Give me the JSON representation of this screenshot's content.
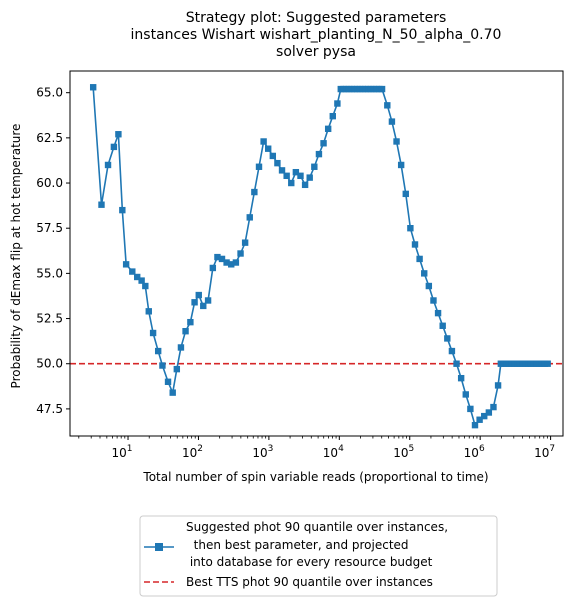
{
  "chart_data": {
    "type": "line",
    "title_lines": [
      "Strategy plot: Suggested parameters",
      "instances Wishart wishart_planting_N_50_alpha_0.70",
      "solver pysa"
    ],
    "xlabel": "Total number of spin variable reads (proportional to time)",
    "ylabel": "Probability of dEmax flip at hot temperature",
    "xscale": "log",
    "xlim": [
      1.5,
      15000000
    ],
    "ylim": [
      46.0,
      66.2
    ],
    "xticks": [
      {
        "value": 10,
        "base": "10",
        "exp": "1"
      },
      {
        "value": 100,
        "base": "10",
        "exp": "2"
      },
      {
        "value": 1000,
        "base": "10",
        "exp": "3"
      },
      {
        "value": 10000,
        "base": "10",
        "exp": "4"
      },
      {
        "value": 100000,
        "base": "10",
        "exp": "5"
      },
      {
        "value": 1000000,
        "base": "10",
        "exp": "6"
      },
      {
        "value": 10000000,
        "base": "10",
        "exp": "7"
      }
    ],
    "yticks": [
      "47.5",
      "50.0",
      "52.5",
      "55.0",
      "57.5",
      "60.0",
      "62.5",
      "65.0"
    ],
    "grid": false,
    "legend_position": "below plot",
    "series": [
      {
        "name": "Suggested phot 90 quantile over instances,\n  then best parameter, and projected\n into database for every resource budget",
        "color": "#1f77b4",
        "style": "solid",
        "marker": "square",
        "x": [
          3.2,
          4.2,
          5.2,
          6.3,
          7.3,
          8.3,
          9.4,
          11.5,
          13.5,
          15.6,
          17.6,
          19.7,
          22.7,
          26.8,
          30.8,
          37.0,
          43.1,
          49.3,
          56.4,
          65.6,
          76.8,
          88.1,
          101,
          117,
          137,
          160,
          186,
          216,
          251,
          292,
          340,
          396,
          460,
          535,
          622,
          724,
          842,
          978,
          1137,
          1322,
          1537,
          1788,
          2078,
          2416,
          2810,
          3268,
          3799,
          4418,
          5137,
          5973,
          6946,
          8076,
          9391,
          10490,
          11480,
          12560,
          13740,
          15030,
          16450,
          18000,
          19690,
          21550,
          23580,
          25800,
          28230,
          30890,
          33800,
          36990,
          40470,
          48030,
          55850,
          64950,
          75530,
          87830,
          102100,
          118800,
          138100,
          160600,
          186700,
          217200,
          252500,
          293700,
          341500,
          397100,
          461800,
          537000,
          624500,
          726200,
          844500,
          982000,
          1142000,
          1328000,
          1544000,
          1796000,
          1965000,
          2150000,
          2353000,
          2575000,
          2817000,
          3083000,
          3374000,
          3692000,
          4040000,
          4421000,
          4838000,
          5294000,
          5793000,
          6339000,
          6937000,
          7591000,
          8306000,
          9089000
        ],
        "y": [
          65.3,
          58.8,
          61.0,
          62.0,
          62.7,
          58.5,
          55.5,
          55.1,
          54.8,
          54.6,
          54.3,
          52.9,
          51.7,
          50.7,
          49.9,
          49.0,
          48.4,
          49.7,
          50.9,
          51.8,
          52.3,
          53.4,
          53.8,
          53.2,
          53.5,
          55.3,
          55.9,
          55.8,
          55.6,
          55.5,
          55.6,
          56.1,
          56.7,
          58.1,
          59.5,
          60.9,
          62.3,
          61.9,
          61.5,
          61.1,
          60.7,
          60.4,
          60.0,
          60.6,
          60.4,
          59.9,
          60.3,
          60.9,
          61.6,
          62.2,
          63.0,
          63.7,
          64.4,
          65.2,
          65.2,
          65.2,
          65.2,
          65.2,
          65.2,
          65.2,
          65.2,
          65.2,
          65.2,
          65.2,
          65.2,
          65.2,
          65.2,
          65.2,
          65.2,
          64.3,
          63.4,
          62.3,
          61.0,
          59.4,
          57.5,
          56.6,
          55.8,
          55.0,
          54.3,
          53.5,
          52.8,
          52.1,
          51.4,
          50.7,
          50.0,
          49.2,
          48.3,
          47.5,
          46.6,
          46.9,
          47.1,
          47.3,
          47.6,
          48.8,
          50.0,
          50.0,
          50.0,
          50.0,
          50.0,
          50.0,
          50.0,
          50.0,
          50.0,
          50.0,
          50.0,
          50.0,
          50.0,
          50.0,
          50.0,
          50.0,
          50.0,
          50.0
        ]
      },
      {
        "name": "Best TTS phot 90 quantile over instances",
        "color": "#d62728",
        "style": "dashed",
        "y_constant": 50.0
      }
    ]
  }
}
